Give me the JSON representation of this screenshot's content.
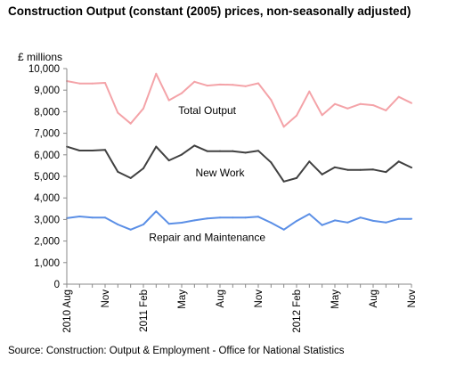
{
  "chart_data": {
    "type": "line",
    "title": "Construction Output (constant (2005) prices, non-seasonally adjusted)",
    "ylabel": "£ millions",
    "xlabel": "",
    "ylim": [
      0,
      10000
    ],
    "yticks": [
      "0",
      "1,000",
      "2,000",
      "3,000",
      "4,000",
      "5,000",
      "6,000",
      "7,000",
      "8,000",
      "9,000",
      "10,000"
    ],
    "x": [
      "2010 Aug",
      "Sep",
      "Oct",
      "Nov",
      "Dec",
      "Jan",
      "2011 Feb",
      "Mar",
      "Apr",
      "May",
      "Jun",
      "Jul",
      "Aug",
      "Sep",
      "Oct",
      "Nov",
      "Dec",
      "Jan",
      "2012 Feb",
      "Mar",
      "Apr",
      "May",
      "Jun",
      "Jul",
      "Aug",
      "Sep",
      "Oct",
      "Nov"
    ],
    "xtick_labels": [
      "2010 Aug",
      "",
      "",
      "Nov",
      "",
      "",
      "2011 Feb",
      "",
      "",
      "May",
      "",
      "",
      "Aug",
      "",
      "",
      "Nov",
      "",
      "",
      "2012 Feb",
      "",
      "",
      "May",
      "",
      "",
      "Aug",
      "",
      "",
      "Nov"
    ],
    "series": [
      {
        "name": "Total Output",
        "color": "#f4a3a8",
        "values": [
          9420,
          9310,
          9310,
          9340,
          7950,
          7450,
          8150,
          9760,
          8530,
          8860,
          9390,
          9210,
          9260,
          9250,
          9180,
          9320,
          8550,
          7300,
          7820,
          8940,
          7840,
          8360,
          8150,
          8360,
          8300,
          8060,
          8690,
          8400
        ]
      },
      {
        "name": "New Work",
        "color": "#404040",
        "values": [
          6380,
          6200,
          6200,
          6230,
          5210,
          4920,
          5370,
          6380,
          5740,
          6010,
          6430,
          6170,
          6170,
          6170,
          6100,
          6190,
          5650,
          4760,
          4920,
          5690,
          5090,
          5420,
          5300,
          5300,
          5320,
          5200,
          5690,
          5410
        ]
      },
      {
        "name": "Repair and Maintenance",
        "color": "#5b8fe6",
        "values": [
          3060,
          3140,
          3090,
          3090,
          2770,
          2530,
          2770,
          3380,
          2800,
          2850,
          2960,
          3050,
          3090,
          3090,
          3090,
          3130,
          2850,
          2530,
          2930,
          3250,
          2740,
          2960,
          2860,
          3090,
          2940,
          2860,
          3030,
          3030
        ]
      }
    ],
    "grid": false,
    "legend": "inline labels"
  },
  "source": "Source: Construction: Output & Employment - Office for National Statistics"
}
